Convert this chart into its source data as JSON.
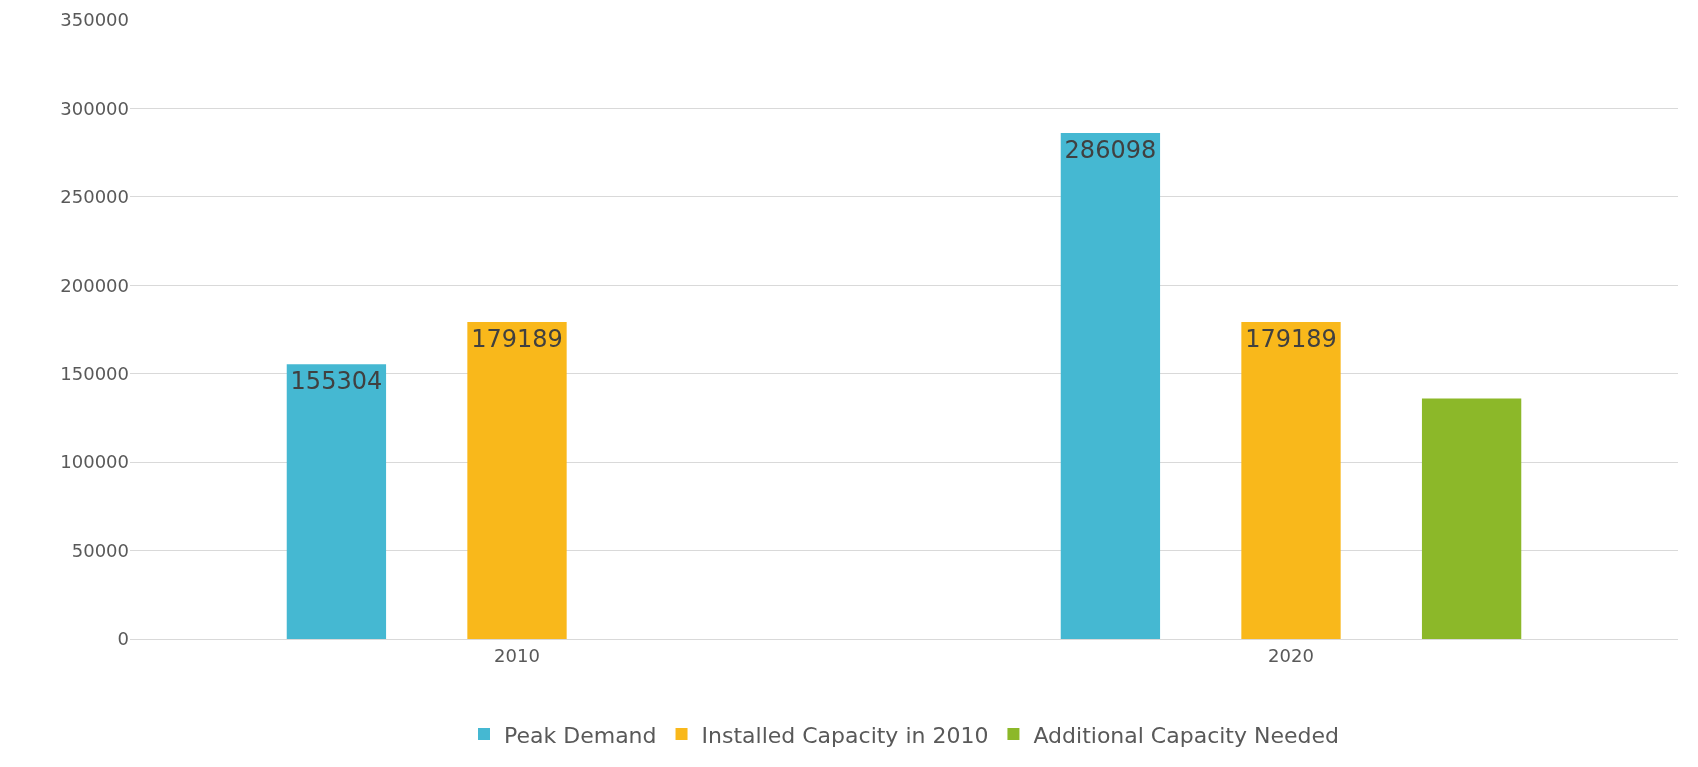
{
  "chart_data": {
    "type": "bar",
    "categories": [
      "2010",
      "2020"
    ],
    "series": [
      {
        "name": "Peak Demand",
        "color": "#45b8d2",
        "values": [
          155304,
          286098
        ],
        "value_labels": [
          "155304",
          "286098"
        ]
      },
      {
        "name": "Installed Capacity in 2010",
        "color": "#f9b81b",
        "values": [
          179189,
          179189
        ],
        "value_labels": [
          "179189",
          "179189"
        ]
      },
      {
        "name": "Additional Capacity Needed",
        "color": "#8cb829",
        "values": [
          null,
          136000
        ],
        "value_labels": [
          null,
          null
        ]
      }
    ],
    "ylim": [
      0,
      350000
    ],
    "yticks": [
      0,
      50000,
      100000,
      150000,
      200000,
      250000,
      300000,
      350000
    ],
    "grid": "y",
    "legend": "bottom"
  }
}
